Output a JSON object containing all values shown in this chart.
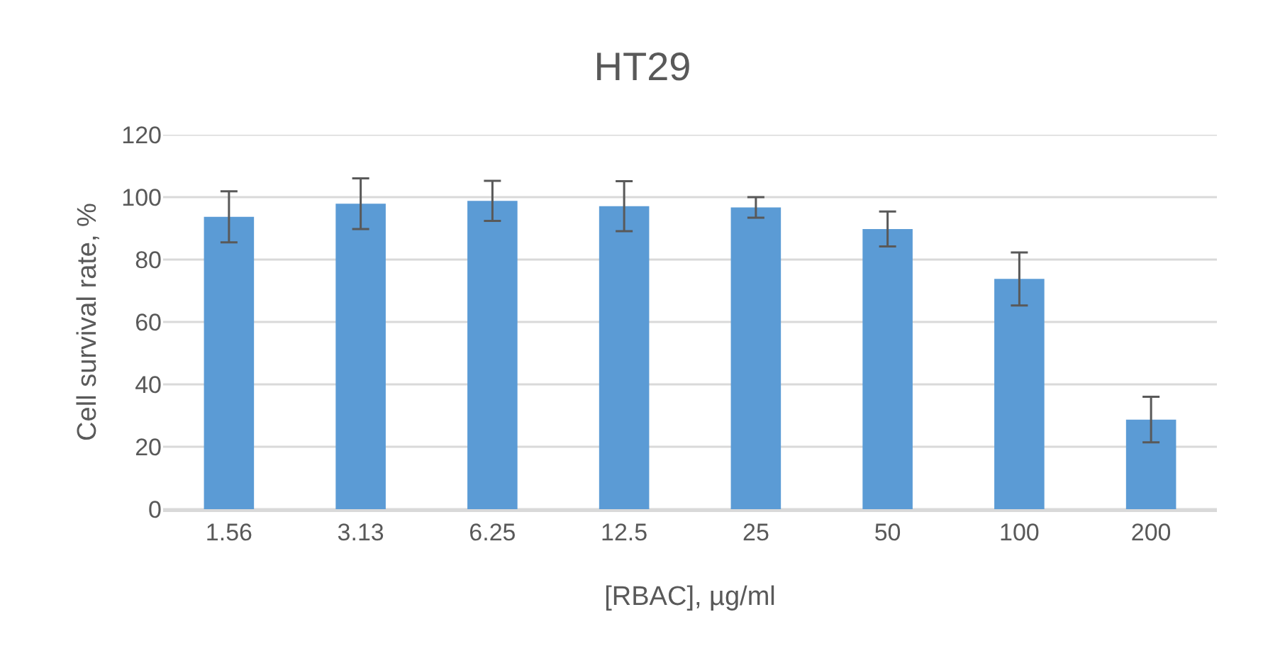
{
  "chart_data": {
    "type": "bar",
    "title": "HT29",
    "xlabel": "[RBAC], µg/ml",
    "ylabel": "Cell survival rate, %",
    "categories": [
      "1.56",
      "3.13",
      "6.25",
      "12.5",
      "25",
      "50",
      "100",
      "200"
    ],
    "values": [
      93.7,
      97.9,
      98.8,
      97.1,
      96.7,
      89.8,
      73.8,
      28.7
    ],
    "errors": [
      8.2,
      8.1,
      6.4,
      8.0,
      3.3,
      5.6,
      8.5,
      7.3
    ],
    "color": "#5b9bd5",
    "ylim": [
      0,
      120
    ],
    "yticks": [
      0,
      20,
      40,
      60,
      80,
      100,
      120
    ],
    "grid": "y"
  }
}
